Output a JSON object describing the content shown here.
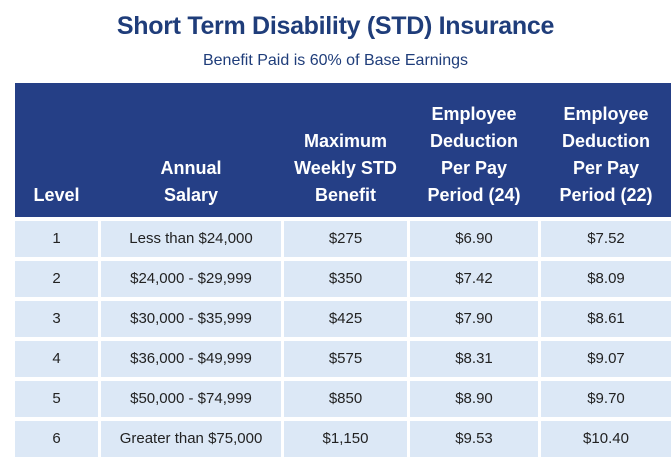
{
  "title": "Short Term Disability (STD) Insurance",
  "subtitle": "Benefit Paid is 60% of Base Earnings",
  "headers": [
    "Level",
    "Annual\nSalary",
    "Maximum\nWeekly STD\nBenefit",
    "Employee\nDeduction\nPer Pay\nPeriod (24)",
    "Employee\nDeduction\nPer Pay\nPeriod (22)"
  ],
  "rows": [
    [
      "1",
      "Less than $24,000",
      "$275",
      "$6.90",
      "$7.52"
    ],
    [
      "2",
      "$24,000 - $29,999",
      "$350",
      "$7.42",
      "$8.09"
    ],
    [
      "3",
      "$30,000 - $35,999",
      "$425",
      "$7.90",
      "$8.61"
    ],
    [
      "4",
      "$36,000 - $49,999",
      "$575",
      "$8.31",
      "$9.07"
    ],
    [
      "5",
      "$50,000 - $74,999",
      "$850",
      "$8.90",
      "$9.70"
    ],
    [
      "6",
      "Greater than $75,000",
      "$1,150",
      "$9.53",
      "$10.40"
    ]
  ],
  "colors": {
    "header_bg": "#253f86",
    "title": "#1f3d7a",
    "cell_bg": "#dce8f6"
  }
}
